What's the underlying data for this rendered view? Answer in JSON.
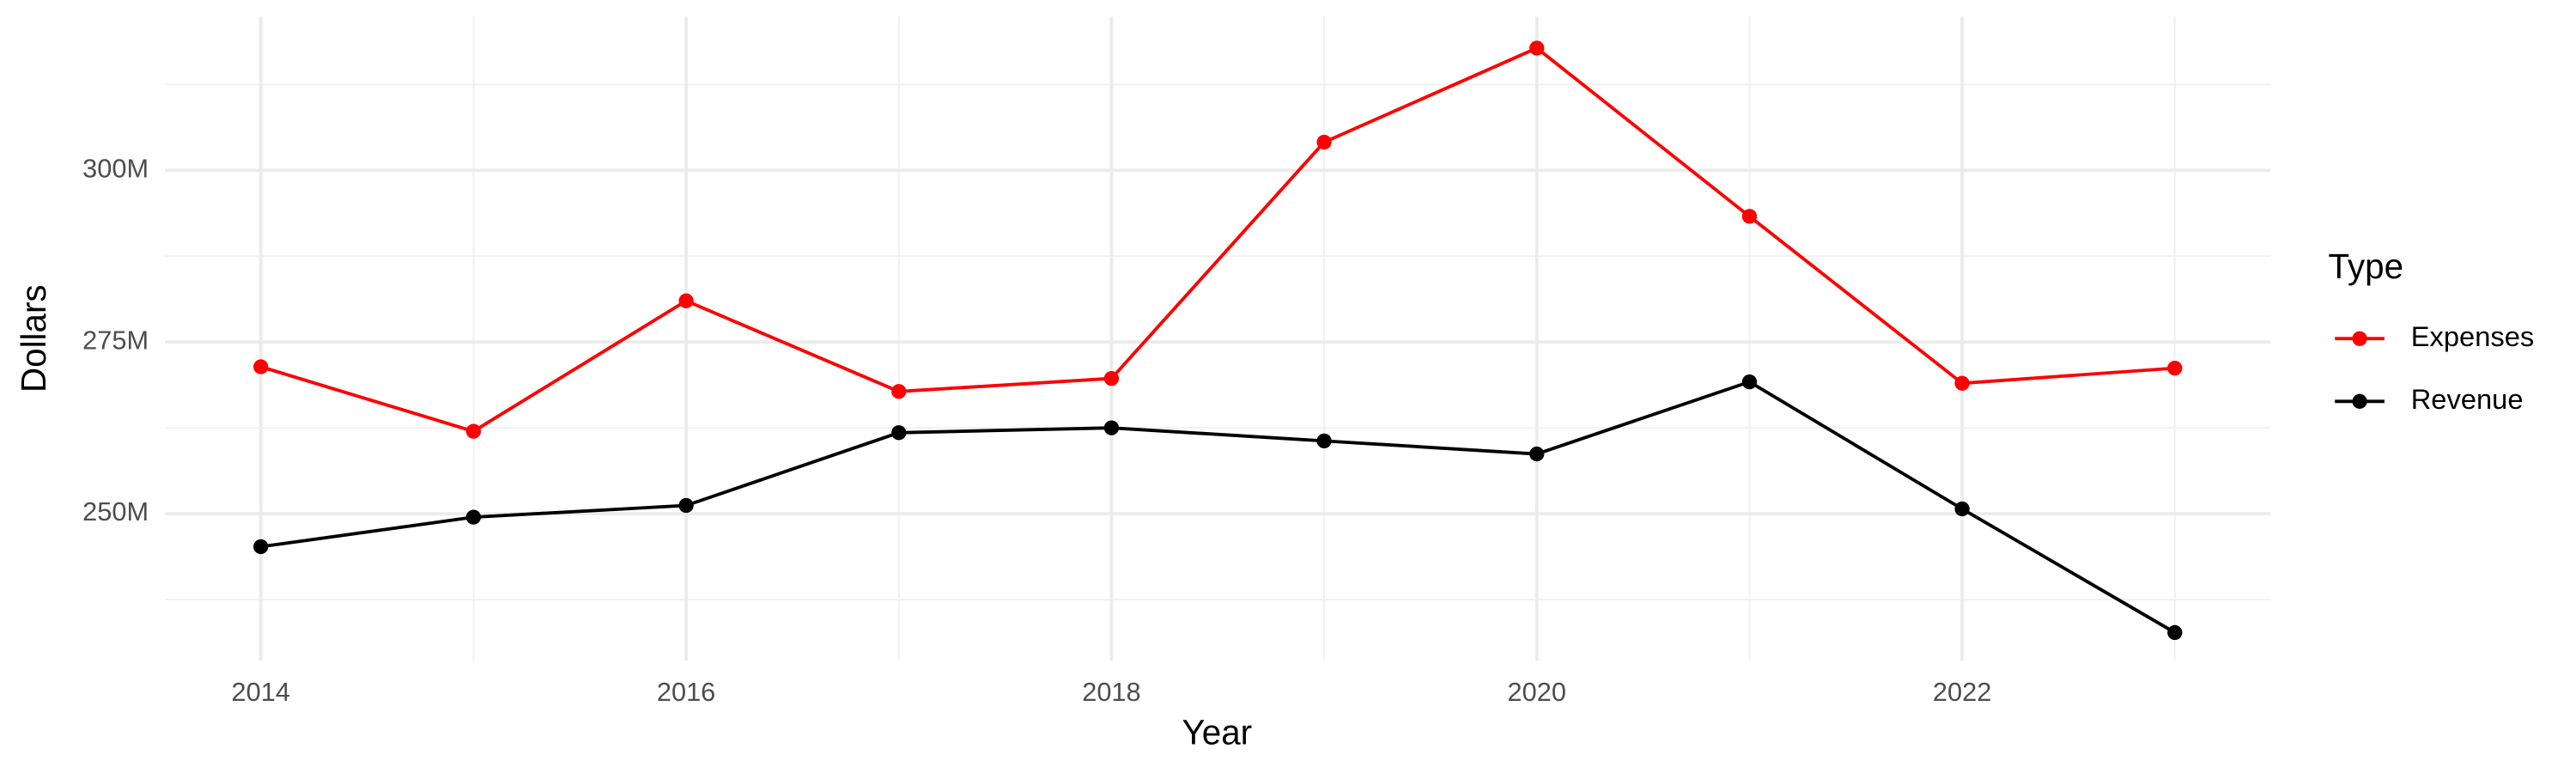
{
  "chart_data": {
    "type": "line",
    "x_label": "Year",
    "y_label": "Dollars",
    "legend_title": "Type",
    "legend_position": "right",
    "grid": true,
    "x": [
      2014,
      2015,
      2016,
      2017,
      2018,
      2019,
      2020,
      2021,
      2022,
      2023
    ],
    "xlim": [
      2013.55,
      2023.45
    ],
    "xticks": [
      2014,
      2016,
      2018,
      2020,
      2022
    ],
    "ylim": [
      228600000,
      322400000
    ],
    "yticks": [
      {
        "value": 250000000,
        "label": "250M"
      },
      {
        "value": 275000000,
        "label": "275M"
      },
      {
        "value": 300000000,
        "label": "300M"
      }
    ],
    "series": [
      {
        "name": "Expenses",
        "color": "#ff0000",
        "values": [
          271400000,
          262000000,
          281000000,
          267800000,
          269700000,
          304100000,
          317800000,
          293300000,
          269000000,
          271200000
        ]
      },
      {
        "name": "Revenue",
        "color": "#000000",
        "values": [
          245200000,
          249500000,
          251200000,
          261800000,
          262500000,
          260600000,
          258700000,
          269200000,
          250700000,
          232700000
        ]
      }
    ]
  }
}
